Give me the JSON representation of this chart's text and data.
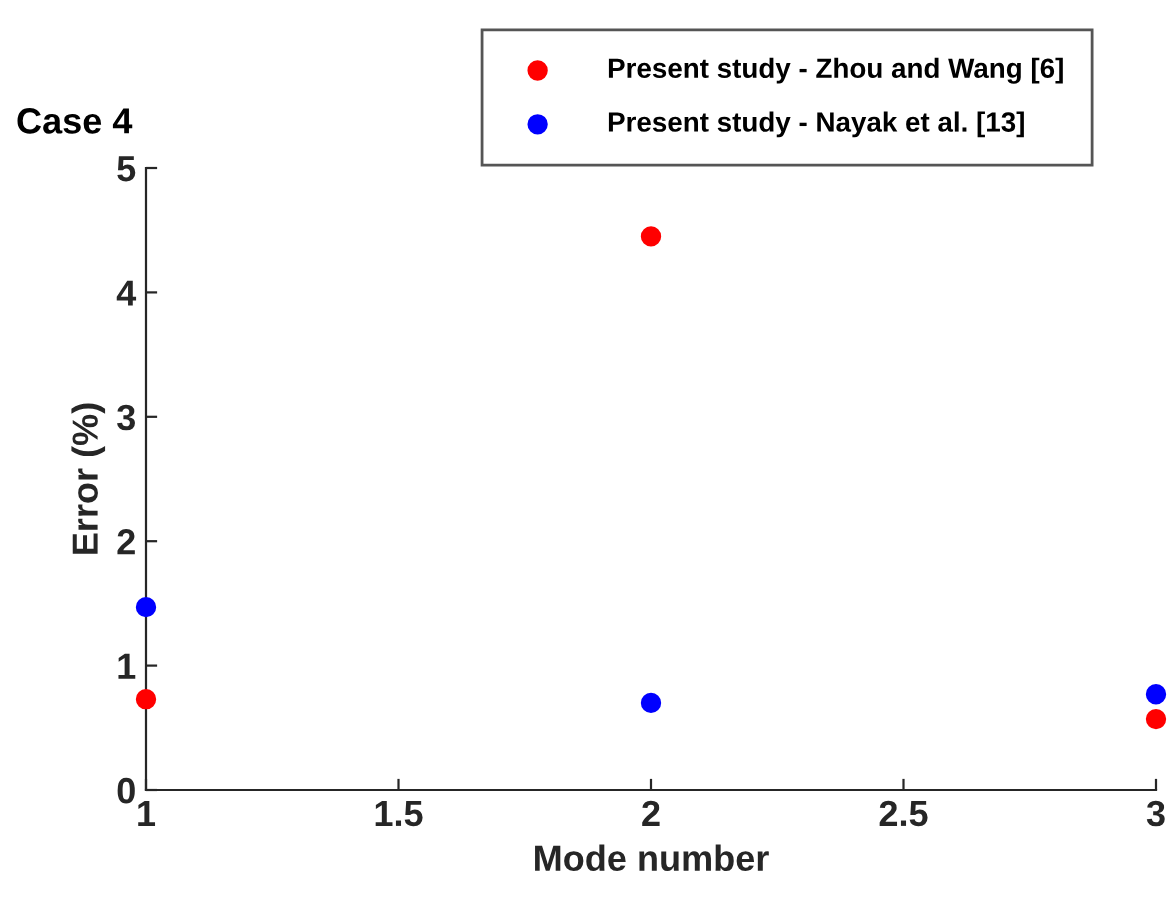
{
  "chart_data": {
    "type": "scatter",
    "title": "Case 4",
    "xlabel": "Mode number",
    "ylabel": "Error (%)",
    "x": [
      1,
      2,
      3
    ],
    "series": [
      {
        "name": "Present study - Zhou and Wang [6]",
        "color": "#ff0000",
        "values": [
          0.73,
          4.45,
          0.57
        ]
      },
      {
        "name": "Present study - Nayak et al. [13]",
        "color": "#0000ff",
        "values": [
          1.47,
          0.7,
          0.77
        ]
      }
    ],
    "xlim": [
      1,
      3
    ],
    "xticks": [
      1,
      1.5,
      2,
      2.5,
      3
    ],
    "ylim": [
      0,
      5
    ],
    "yticks": [
      0,
      1,
      2,
      3,
      4,
      5
    ],
    "grid": false,
    "legend": "top right",
    "marker": "circle"
  }
}
